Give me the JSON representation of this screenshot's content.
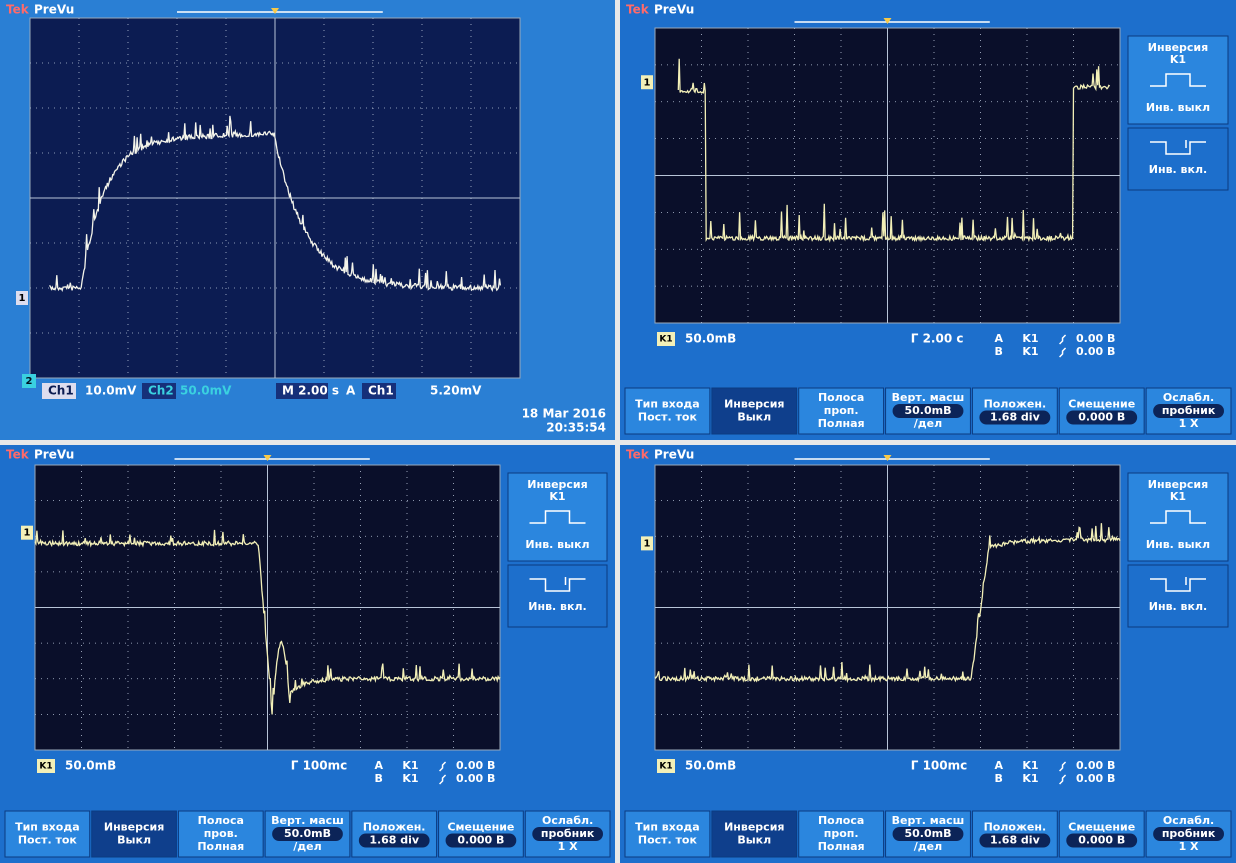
{
  "screens": [
    {
      "brand": "Tek",
      "mode": "PreVu",
      "ch1_marker": "1",
      "ch2_marker": "2",
      "status": [
        "Ch1",
        "10.0mV",
        "Ch2",
        "50.0mV",
        "M 2.00 s",
        "A",
        "Ch1",
        "5.20mV"
      ],
      "date": "18 Mar 2016",
      "time": "20:35:54"
    },
    {
      "brand": "Tek",
      "mode": "PreVu",
      "ch1_marker": "1",
      "side_menu": {
        "title": "Инверсия",
        "channel": "K1",
        "off": "Инв. выкл",
        "on": "Инв. вкл."
      },
      "readout": {
        "channel": "K1",
        "scale": "50.0mB",
        "timebase": "Г 2.00 с",
        "trig": [
          [
            "A",
            "K1",
            "0.00 B"
          ],
          [
            "B",
            "K1",
            "0.00 B"
          ]
        ]
      },
      "menu": [
        [
          "Тип входа",
          "Пост. ток"
        ],
        [
          "Инверсия",
          "Выкл"
        ],
        [
          "Полоса",
          "проп.",
          "Полная"
        ],
        [
          "Верт. масш",
          "50.0mB",
          "/дел"
        ],
        [
          "Положен.",
          "1.68 div"
        ],
        [
          "Смещение",
          "0.000 B"
        ],
        [
          "Ослабл.",
          "пробник",
          "1 X"
        ]
      ]
    },
    {
      "brand": "Tek",
      "mode": "PreVu",
      "ch1_marker": "1",
      "side_menu": {
        "title": "Инверсия",
        "channel": "K1",
        "off": "Инв. выкл",
        "on": "Инв. вкл."
      },
      "readout": {
        "channel": "K1",
        "scale": "50.0mB",
        "timebase": "Г 100mc",
        "trig": [
          [
            "A",
            "K1",
            "0.00 B"
          ],
          [
            "B",
            "K1",
            "0.00 B"
          ]
        ]
      },
      "menu": [
        [
          "Тип входа",
          "Пост. ток"
        ],
        [
          "Инверсия",
          "Выкл"
        ],
        [
          "Полоса",
          "пров.",
          "Полная"
        ],
        [
          "Верт. масш",
          "50.0mB",
          "/дел"
        ],
        [
          "Положен.",
          "1.68 div"
        ],
        [
          "Смещение",
          "0.000 B"
        ],
        [
          "Ослабл.",
          "пробник",
          "1 X"
        ]
      ]
    },
    {
      "brand": "Tek",
      "mode": "PreVu",
      "ch1_marker": "1",
      "side_menu": {
        "title": "Инверсия",
        "channel": "K1",
        "off": "Инв. выкл",
        "on": "Инв. вкл."
      },
      "readout": {
        "channel": "K1",
        "scale": "50.0mB",
        "timebase": "Г 100mc",
        "trig": [
          [
            "A",
            "K1",
            "0.00 B"
          ],
          [
            "B",
            "K1",
            "0.00 B"
          ]
        ]
      },
      "menu": [
        [
          "Тип входа",
          "Пост. ток"
        ],
        [
          "Инверсия",
          "Выкл"
        ],
        [
          "Полоса",
          "проп.",
          "Полная"
        ],
        [
          "Верт. масш",
          "50.0mB",
          "/дел"
        ],
        [
          "Положен.",
          "1.68 div"
        ],
        [
          "Смещение",
          "0.000 B"
        ],
        [
          "Ослабл.",
          "пробник",
          "1 X"
        ]
      ]
    }
  ]
}
